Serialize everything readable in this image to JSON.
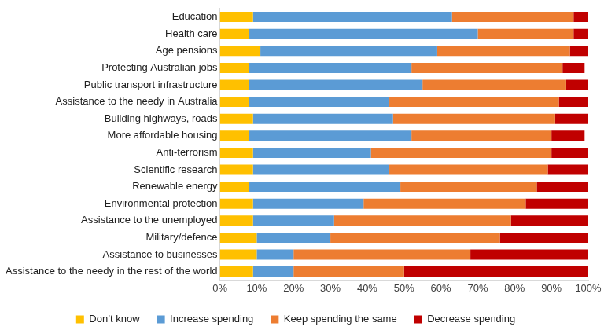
{
  "chart_data": {
    "type": "bar",
    "orientation": "horizontal",
    "stacked": true,
    "grid": false,
    "legend": "bottom",
    "categories": [
      "Education",
      "Health care",
      "Age pensions",
      "Protecting Australian jobs",
      "Public transport infrastructure",
      "Assistance to the needy in Australia",
      "Building highways, roads",
      "More affordable housing",
      "Anti-terrorism",
      "Scientific research",
      "Renewable energy",
      "Environmental protection",
      "Assistance to the unemployed",
      "Military/defence",
      "Assistance to businesses",
      "Assistance to the needy in the rest of the world"
    ],
    "series": [
      {
        "name": "Don’t know",
        "color": "#ffc000",
        "values": [
          9,
          8,
          11,
          8,
          8,
          8,
          9,
          8,
          9,
          9,
          8,
          9,
          9,
          10,
          10,
          9
        ]
      },
      {
        "name": "Increase spending",
        "color": "#5b9bd5",
        "values": [
          54,
          62,
          48,
          44,
          47,
          38,
          38,
          44,
          32,
          37,
          41,
          30,
          22,
          20,
          10,
          11
        ]
      },
      {
        "name": "Keep spending the same",
        "color": "#ed7d31",
        "values": [
          33,
          26,
          36,
          41,
          39,
          46,
          44,
          38,
          49,
          43,
          37,
          44,
          48,
          46,
          48,
          30
        ]
      },
      {
        "name": "Decrease spending",
        "color": "#c00000",
        "values": [
          4,
          4,
          5,
          6,
          6,
          8,
          9,
          9,
          10,
          11,
          14,
          17,
          21,
          24,
          32,
          50
        ]
      }
    ],
    "xlim": [
      0,
      100
    ],
    "xticks": [
      {
        "value": 0,
        "label": "0%"
      },
      {
        "value": 10,
        "label": "10%"
      },
      {
        "value": 20,
        "label": "20%"
      },
      {
        "value": 30,
        "label": "30%"
      },
      {
        "value": 40,
        "label": "40%"
      },
      {
        "value": 50,
        "label": "50%"
      },
      {
        "value": 60,
        "label": "60%"
      },
      {
        "value": 70,
        "label": "70%"
      },
      {
        "value": 80,
        "label": "80%"
      },
      {
        "value": 90,
        "label": "90%"
      },
      {
        "value": 100,
        "label": "100%"
      }
    ]
  }
}
